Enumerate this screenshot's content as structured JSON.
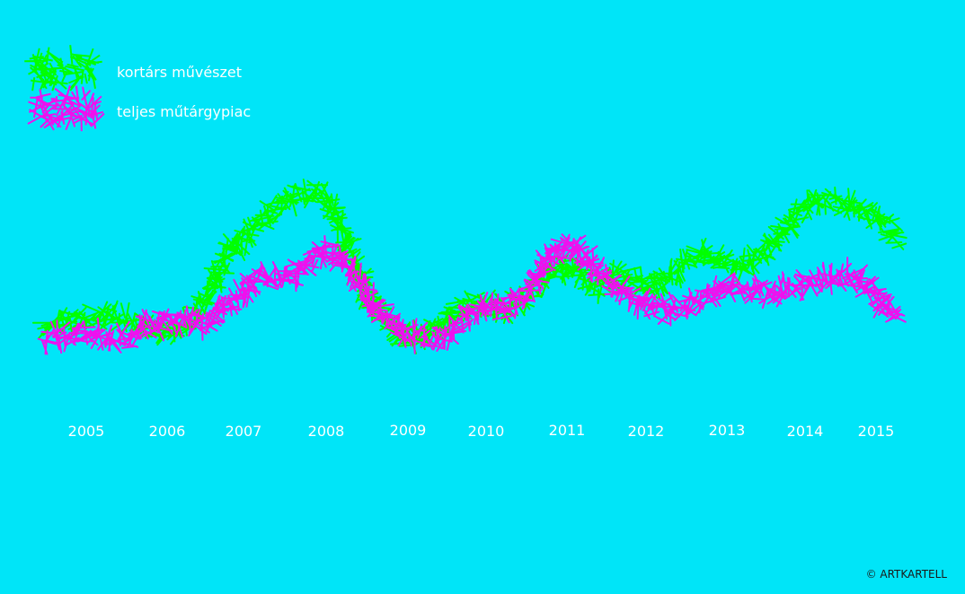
{
  "chart_data": {
    "type": "line",
    "title": "",
    "xlabel": "",
    "ylabel": "",
    "categories": [
      "2005",
      "2006",
      "2007",
      "2008",
      "2009",
      "2010",
      "2011",
      "2012",
      "2013",
      "2014",
      "2015"
    ],
    "series": [
      {
        "name": "kortárs művészet",
        "color": "#00ff00",
        "points": [
          [
            2004.5,
            365
          ],
          [
            2005.0,
            352
          ],
          [
            2005.5,
            355
          ],
          [
            2005.9,
            372
          ],
          [
            2006.2,
            366
          ],
          [
            2006.5,
            335
          ],
          [
            2006.8,
            280
          ],
          [
            2007.0,
            265
          ],
          [
            2007.3,
            240
          ],
          [
            2007.6,
            218
          ],
          [
            2007.9,
            212
          ],
          [
            2008.1,
            235
          ],
          [
            2008.3,
            280
          ],
          [
            2008.5,
            330
          ],
          [
            2008.75,
            360
          ],
          [
            2009.0,
            378
          ],
          [
            2009.3,
            370
          ],
          [
            2009.6,
            345
          ],
          [
            2009.9,
            338
          ],
          [
            2010.2,
            345
          ],
          [
            2010.5,
            330
          ],
          [
            2010.8,
            305
          ],
          [
            2011.0,
            295
          ],
          [
            2011.2,
            310
          ],
          [
            2011.4,
            322
          ],
          [
            2011.6,
            305
          ],
          [
            2011.9,
            312
          ],
          [
            2012.1,
            320
          ],
          [
            2012.4,
            302
          ],
          [
            2012.7,
            282
          ],
          [
            2012.9,
            290
          ],
          [
            2013.1,
            300
          ],
          [
            2013.4,
            288
          ],
          [
            2013.6,
            270
          ],
          [
            2013.8,
            248
          ],
          [
            2014.1,
            222
          ],
          [
            2014.4,
            226
          ],
          [
            2014.7,
            232
          ],
          [
            2015.0,
            240
          ],
          [
            2015.3,
            265
          ]
        ]
      },
      {
        "name": "teljes műtárgypiac",
        "color": "#ee11ee",
        "points": [
          [
            2004.5,
            378
          ],
          [
            2005.0,
            372
          ],
          [
            2005.5,
            378
          ],
          [
            2005.8,
            360
          ],
          [
            2006.2,
            356
          ],
          [
            2006.5,
            362
          ],
          [
            2006.9,
            330
          ],
          [
            2007.2,
            308
          ],
          [
            2007.5,
            312
          ],
          [
            2007.8,
            290
          ],
          [
            2008.0,
            278
          ],
          [
            2008.2,
            292
          ],
          [
            2008.4,
            312
          ],
          [
            2008.6,
            342
          ],
          [
            2008.9,
            368
          ],
          [
            2009.1,
            375
          ],
          [
            2009.4,
            378
          ],
          [
            2009.7,
            360
          ],
          [
            2010.0,
            340
          ],
          [
            2010.2,
            345
          ],
          [
            2010.5,
            328
          ],
          [
            2010.8,
            285
          ],
          [
            2011.0,
            270
          ],
          [
            2011.2,
            285
          ],
          [
            2011.4,
            302
          ],
          [
            2011.6,
            318
          ],
          [
            2011.9,
            338
          ],
          [
            2012.2,
            348
          ],
          [
            2012.5,
            342
          ],
          [
            2012.8,
            328
          ],
          [
            2013.0,
            320
          ],
          [
            2013.3,
            326
          ],
          [
            2013.6,
            325
          ],
          [
            2014.0,
            318
          ],
          [
            2014.3,
            312
          ],
          [
            2014.6,
            306
          ],
          [
            2014.9,
            318
          ],
          [
            2015.1,
            340
          ],
          [
            2015.3,
            355
          ]
        ]
      }
    ],
    "legend_position": "top-left",
    "grid": false
  },
  "footer": {
    "copyright": "© ARTKARTELL"
  }
}
